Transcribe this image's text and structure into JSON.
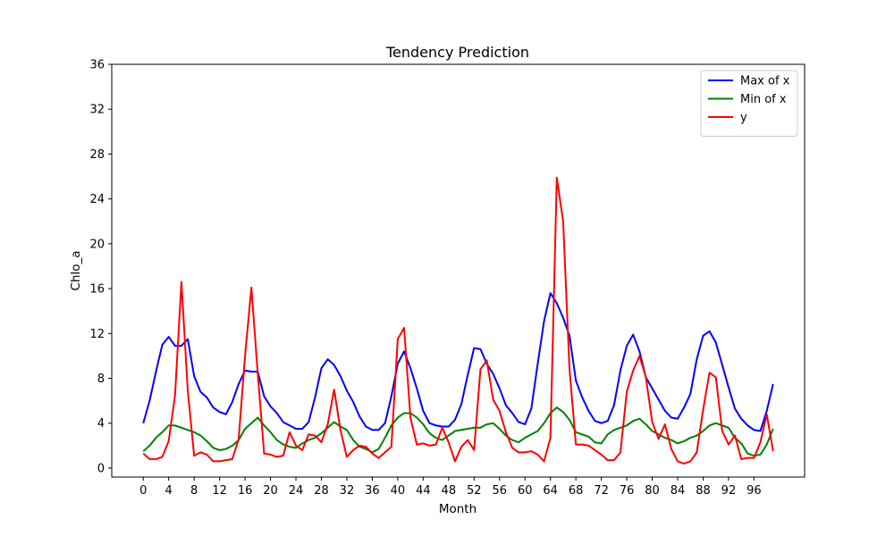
{
  "chart_data": {
    "type": "line",
    "title": "Tendency Prediction",
    "xlabel": "Month",
    "ylabel": "Chlo_a",
    "xlim": [
      -4.95,
      103.95
    ],
    "ylim": [
      -0.8,
      36
    ],
    "xticks": [
      0,
      4,
      8,
      12,
      16,
      20,
      24,
      28,
      32,
      36,
      40,
      44,
      48,
      52,
      56,
      60,
      64,
      68,
      72,
      76,
      80,
      84,
      88,
      92,
      96
    ],
    "yticks": [
      0,
      4,
      8,
      12,
      16,
      20,
      24,
      28,
      32,
      36
    ],
    "grid": false,
    "legend_position": "top-right",
    "series": [
      {
        "name": "Max of x",
        "color": "#0000ff",
        "x": [
          0,
          1,
          2,
          3,
          4,
          5,
          6,
          7,
          8,
          9,
          10,
          11,
          12,
          13,
          14,
          15,
          16,
          17,
          18,
          19,
          20,
          21,
          22,
          23,
          24,
          25,
          26,
          27,
          28,
          29,
          30,
          31,
          32,
          33,
          34,
          35,
          36,
          37,
          38,
          39,
          40,
          41,
          42,
          43,
          44,
          45,
          46,
          47,
          48,
          49,
          50,
          51,
          52,
          53,
          54,
          55,
          56,
          57,
          58,
          59,
          60,
          61,
          62,
          63,
          64,
          65,
          66,
          67,
          68,
          69,
          70,
          71,
          72,
          73,
          74,
          75,
          76,
          77,
          78,
          79,
          80,
          81,
          82,
          83,
          84,
          85,
          86,
          87,
          88,
          89,
          90,
          91,
          92,
          93,
          94,
          95,
          96,
          97,
          98,
          99
        ],
        "values": [
          4.0,
          6.0,
          8.6,
          11.0,
          11.7,
          10.9,
          10.9,
          11.5,
          8.2,
          6.8,
          6.3,
          5.4,
          5.0,
          4.8,
          5.9,
          7.5,
          8.7,
          8.6,
          8.6,
          6.4,
          5.5,
          4.9,
          4.1,
          3.8,
          3.5,
          3.5,
          4.1,
          6.3,
          8.9,
          9.7,
          9.2,
          8.2,
          6.9,
          5.9,
          4.6,
          3.7,
          3.4,
          3.4,
          4.0,
          6.4,
          9.3,
          10.4,
          8.9,
          7.1,
          5.1,
          4.0,
          3.8,
          3.7,
          3.7,
          4.3,
          5.7,
          8.3,
          10.7,
          10.6,
          9.3,
          8.4,
          7.1,
          5.6,
          4.9,
          4.1,
          3.9,
          5.3,
          9.3,
          13.1,
          15.6,
          14.7,
          13.4,
          11.8,
          7.8,
          6.3,
          5.1,
          4.2,
          4.0,
          4.2,
          5.6,
          8.7,
          10.9,
          11.9,
          10.4,
          8.1,
          7.1,
          6.1,
          5.1,
          4.5,
          4.4,
          5.4,
          6.6,
          9.7,
          11.8,
          12.2,
          11.2,
          9.2,
          7.2,
          5.3,
          4.4,
          3.8,
          3.4,
          3.3,
          5.1,
          7.5
        ]
      },
      {
        "name": "Min of x",
        "color": "#008000",
        "x": [
          0,
          1,
          2,
          3,
          4,
          5,
          6,
          7,
          8,
          9,
          10,
          11,
          12,
          13,
          14,
          15,
          16,
          17,
          18,
          19,
          20,
          21,
          22,
          23,
          24,
          25,
          26,
          27,
          28,
          29,
          30,
          31,
          32,
          33,
          34,
          35,
          36,
          37,
          38,
          39,
          40,
          41,
          42,
          43,
          44,
          45,
          46,
          47,
          48,
          49,
          50,
          51,
          52,
          53,
          54,
          55,
          56,
          57,
          58,
          59,
          60,
          61,
          62,
          63,
          64,
          65,
          66,
          67,
          68,
          69,
          70,
          71,
          72,
          73,
          74,
          75,
          76,
          77,
          78,
          79,
          80,
          81,
          82,
          83,
          84,
          85,
          86,
          87,
          88,
          89,
          90,
          91,
          92,
          93,
          94,
          95,
          96,
          97,
          98,
          99
        ],
        "values": [
          1.5,
          2.0,
          2.7,
          3.2,
          3.8,
          3.8,
          3.6,
          3.4,
          3.2,
          2.9,
          2.4,
          1.8,
          1.6,
          1.7,
          2.0,
          2.5,
          3.5,
          4.0,
          4.5,
          3.8,
          3.2,
          2.5,
          2.1,
          1.9,
          1.8,
          2.2,
          2.5,
          2.7,
          3.1,
          3.6,
          4.1,
          3.7,
          3.4,
          2.5,
          1.9,
          1.7,
          1.4,
          1.7,
          2.7,
          3.8,
          4.5,
          4.9,
          4.9,
          4.5,
          3.9,
          3.1,
          2.7,
          2.5,
          2.9,
          3.3,
          3.4,
          3.5,
          3.6,
          3.6,
          3.9,
          4.0,
          3.5,
          2.9,
          2.5,
          2.3,
          2.7,
          3.0,
          3.3,
          4.0,
          4.9,
          5.4,
          5.0,
          4.3,
          3.2,
          3.0,
          2.8,
          2.3,
          2.2,
          3.0,
          3.4,
          3.6,
          3.8,
          4.2,
          4.4,
          3.9,
          3.3,
          3.0,
          2.7,
          2.5,
          2.2,
          2.4,
          2.7,
          2.9,
          3.3,
          3.8,
          4.0,
          3.8,
          3.6,
          2.7,
          2.2,
          1.3,
          1.1,
          1.2,
          2.1,
          3.5
        ]
      },
      {
        "name": "y",
        "color": "#ff0000",
        "x": [
          0,
          1,
          2,
          3,
          4,
          5,
          6,
          7,
          8,
          9,
          10,
          11,
          12,
          13,
          14,
          15,
          16,
          17,
          18,
          19,
          20,
          21,
          22,
          23,
          24,
          25,
          26,
          27,
          28,
          29,
          30,
          31,
          32,
          33,
          34,
          35,
          36,
          37,
          38,
          39,
          40,
          41,
          42,
          43,
          44,
          45,
          46,
          47,
          48,
          49,
          50,
          51,
          52,
          53,
          54,
          55,
          56,
          57,
          58,
          59,
          60,
          61,
          62,
          63,
          64,
          65,
          66,
          67,
          68,
          69,
          70,
          71,
          72,
          73,
          74,
          75,
          76,
          77,
          78,
          79,
          80,
          81,
          82,
          83,
          84,
          85,
          86,
          87,
          88,
          89,
          90,
          91,
          92,
          93,
          94,
          95,
          96,
          97,
          98,
          99
        ],
        "values": [
          1.3,
          0.8,
          0.8,
          1.0,
          2.4,
          6.5,
          16.6,
          6.9,
          1.1,
          1.4,
          1.2,
          0.6,
          0.6,
          0.7,
          0.8,
          2.6,
          10.0,
          16.1,
          8.4,
          1.3,
          1.2,
          1.0,
          1.1,
          3.2,
          2.0,
          1.6,
          3.0,
          2.9,
          2.3,
          3.9,
          7.0,
          3.4,
          1.0,
          1.6,
          2.0,
          1.9,
          1.3,
          0.9,
          1.4,
          1.9,
          11.5,
          12.5,
          4.5,
          2.1,
          2.2,
          2.0,
          2.1,
          3.6,
          2.3,
          0.6,
          1.9,
          2.5,
          1.6,
          8.8,
          9.6,
          6.1,
          5.1,
          3.2,
          1.8,
          1.4,
          1.4,
          1.5,
          1.2,
          0.6,
          2.7,
          25.9,
          22.0,
          8.8,
          2.1,
          2.1,
          2.0,
          1.6,
          1.2,
          0.7,
          0.7,
          1.4,
          6.8,
          8.7,
          10.0,
          8.1,
          4.1,
          2.6,
          3.9,
          1.7,
          0.6,
          0.4,
          0.6,
          1.4,
          5.2,
          8.5,
          8.1,
          3.3,
          2.1,
          2.9,
          0.8,
          0.9,
          0.9,
          2.3,
          4.8,
          1.5
        ]
      }
    ]
  }
}
